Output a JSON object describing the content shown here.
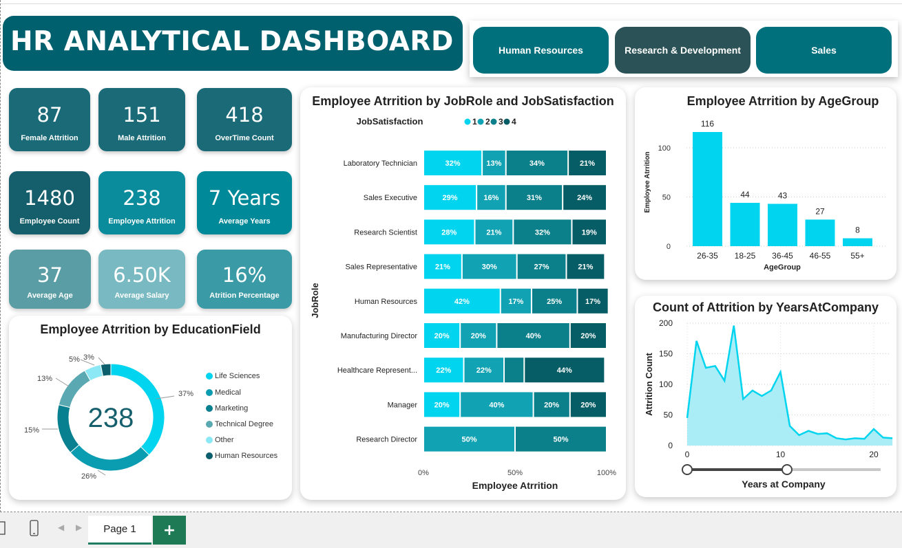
{
  "title": "HR ANALYTICAL DASHBOARD",
  "departments": [
    {
      "label": "Human Resources",
      "color": "#00707c"
    },
    {
      "label": "Research & Development",
      "color": "#2b5256"
    },
    {
      "label": "Sales",
      "color": "#00707c"
    }
  ],
  "kpis": [
    {
      "value": "87",
      "label": "Female Attrition",
      "color": "#1a6a77"
    },
    {
      "value": "151",
      "label": "Male Attrition",
      "color": "#1a6a77"
    },
    {
      "value": "418",
      "label": "OverTime Count",
      "color": "#1a6a77"
    },
    {
      "value": "1480",
      "label": "Employee Count",
      "color": "#145f6b"
    },
    {
      "value": "238",
      "label": "Employee Attrition",
      "color": "#0a8c9c"
    },
    {
      "value": "7 Years",
      "label": "Average Years",
      "color": "#008a99"
    },
    {
      "value": "37",
      "label": "Average Age",
      "color": "#5a9da5"
    },
    {
      "value": "6.50K",
      "label": "Average Salary",
      "color": "#79b9c1"
    },
    {
      "value": "16%",
      "label": "Atrition Percentage",
      "color": "#3a9aa5"
    }
  ],
  "education_chart": {
    "title": "Employee Atrrition by EducationField",
    "center_value": "238",
    "slices": [
      {
        "name": "Life Sciences",
        "pct": 37,
        "label": "37%",
        "color": "#00d4ef"
      },
      {
        "name": "Medical",
        "pct": 26,
        "label": "26%",
        "color": "#0a9cb0"
      },
      {
        "name": "Marketing",
        "pct": 15,
        "label": "15%",
        "color": "#098090"
      },
      {
        "name": "Technical Degree",
        "pct": 13,
        "label": "13%",
        "color": "#5aa8b1"
      },
      {
        "name": "Other",
        "pct": 5,
        "label": "5%",
        "color": "#8be8f4"
      },
      {
        "name": "Human Resources",
        "pct": 3,
        "label": "3%",
        "color": "#0b5f6c"
      }
    ]
  },
  "jobrole_chart": {
    "title": "Employee Atrrition by JobRole and JobSatisfaction",
    "legend_title": "JobSatisfaction",
    "legend": [
      {
        "name": "1",
        "color": "#00d4ef"
      },
      {
        "name": "2",
        "color": "#11a3b4"
      },
      {
        "name": "3",
        "color": "#0b7f8a"
      },
      {
        "name": "4",
        "color": "#075d66"
      }
    ],
    "ylabel": "JobRole",
    "xlabel": "Employee Atrrition",
    "xticks": [
      "0%",
      "50%",
      "100%"
    ]
  },
  "agegroup_chart": {
    "title": "Employee Atrrition by AgeGroup",
    "ylabel": "Employee Atrrition",
    "xlabel": "AgeGroup",
    "yticks": [
      "0",
      "50",
      "100"
    ]
  },
  "years_chart": {
    "title": "Count of Attrition by YearsAtCompany",
    "ylabel": "Attrition Count",
    "xlabel": "Years at Company",
    "yticks": [
      "0",
      "50",
      "100",
      "150",
      "200"
    ],
    "xticks": [
      "0",
      "10",
      "20"
    ],
    "slider_range": [
      0,
      11
    ]
  },
  "chart_data": [
    {
      "type": "pie",
      "title": "Employee Atrrition by EducationField",
      "categories": [
        "Life Sciences",
        "Medical",
        "Marketing",
        "Technical Degree",
        "Other",
        "Human Resources"
      ],
      "values": [
        37,
        26,
        15,
        13,
        5,
        3
      ]
    },
    {
      "type": "bar",
      "orientation": "horizontal-stacked-100",
      "title": "Employee Atrrition by JobRole and JobSatisfaction",
      "categories": [
        "Laboratory Technician",
        "Sales Executive",
        "Research Scientist",
        "Sales Representative",
        "Human Resources",
        "Manufacturing Director",
        "Healthcare Represent...",
        "Manager",
        "Research Director"
      ],
      "series": [
        {
          "name": "1",
          "values": [
            32,
            29,
            28,
            21,
            42,
            20,
            22,
            20,
            0
          ],
          "labels": [
            "32%",
            "29%",
            "28%",
            "21%",
            "42%",
            "20%",
            "22%",
            "20%",
            ""
          ]
        },
        {
          "name": "2",
          "values": [
            13,
            16,
            21,
            30,
            17,
            20,
            22,
            40,
            50
          ],
          "labels": [
            "13%",
            "16%",
            "21%",
            "30%",
            "17%",
            "20%",
            "22%",
            "40%",
            "50%"
          ]
        },
        {
          "name": "3",
          "values": [
            34,
            31,
            32,
            27,
            25,
            40,
            11,
            20,
            50
          ],
          "labels": [
            "34%",
            "31%",
            "32%",
            "27%",
            "25%",
            "40%",
            "",
            "20%",
            "50%"
          ]
        },
        {
          "name": "4",
          "values": [
            21,
            24,
            19,
            21,
            17,
            20,
            44,
            20,
            0
          ],
          "labels": [
            "21%",
            "24%",
            "19%",
            "21%",
            "17%",
            "20%",
            "44%",
            "20%",
            ""
          ]
        }
      ],
      "xlabel": "Employee Atrrition",
      "ylabel": "JobRole",
      "xlim": [
        0,
        100
      ]
    },
    {
      "type": "bar",
      "title": "Employee Atrrition by AgeGroup",
      "categories": [
        "26-35",
        "18-25",
        "36-45",
        "46-55",
        "55+"
      ],
      "values": [
        116,
        44,
        43,
        27,
        8
      ],
      "xlabel": "AgeGroup",
      "ylabel": "Employee Atrrition",
      "ylim": [
        0,
        125
      ],
      "color": "#00d4ef"
    },
    {
      "type": "area",
      "title": "Count of Attrition by YearsAtCompany",
      "x": [
        0,
        1,
        2,
        3,
        4,
        5,
        6,
        7,
        8,
        9,
        10,
        11,
        12,
        13,
        14,
        15,
        16,
        17,
        18,
        19,
        20,
        21,
        22
      ],
      "values": [
        45,
        171,
        127,
        130,
        106,
        196,
        76,
        90,
        81,
        90,
        120,
        32,
        17,
        24,
        19,
        20,
        12,
        10,
        12,
        11,
        27,
        13,
        12
      ],
      "xlabel": "Years at Company",
      "ylabel": "Attrition Count",
      "ylim": [
        0,
        200
      ],
      "xlim": [
        0,
        22
      ],
      "color": "#00d4ef"
    }
  ],
  "tabs": {
    "page1": "Page 1",
    "add": "+"
  }
}
